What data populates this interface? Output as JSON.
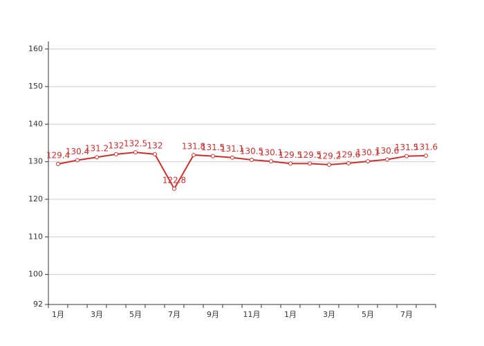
{
  "chart_data": {
    "type": "line",
    "categories": [
      "1月",
      null,
      "3月",
      null,
      "5月",
      null,
      "7月",
      null,
      "9月",
      null,
      "11月",
      null,
      "1月",
      null,
      "3月",
      null,
      "5月",
      null,
      "7月",
      null
    ],
    "series": [
      {
        "color": "#c9302c",
        "values": [
          129.4,
          130.4,
          131.2,
          132,
          132.5,
          132,
          122.8,
          131.8,
          131.5,
          131.1,
          130.5,
          130.1,
          129.5,
          129.5,
          129.2,
          129.6,
          130.1,
          130.6,
          131.5,
          131.6
        ]
      }
    ],
    "ylim": [
      92,
      162
    ],
    "yticks": [
      92,
      100,
      110,
      120,
      130,
      140,
      150,
      160
    ],
    "grid": true
  }
}
